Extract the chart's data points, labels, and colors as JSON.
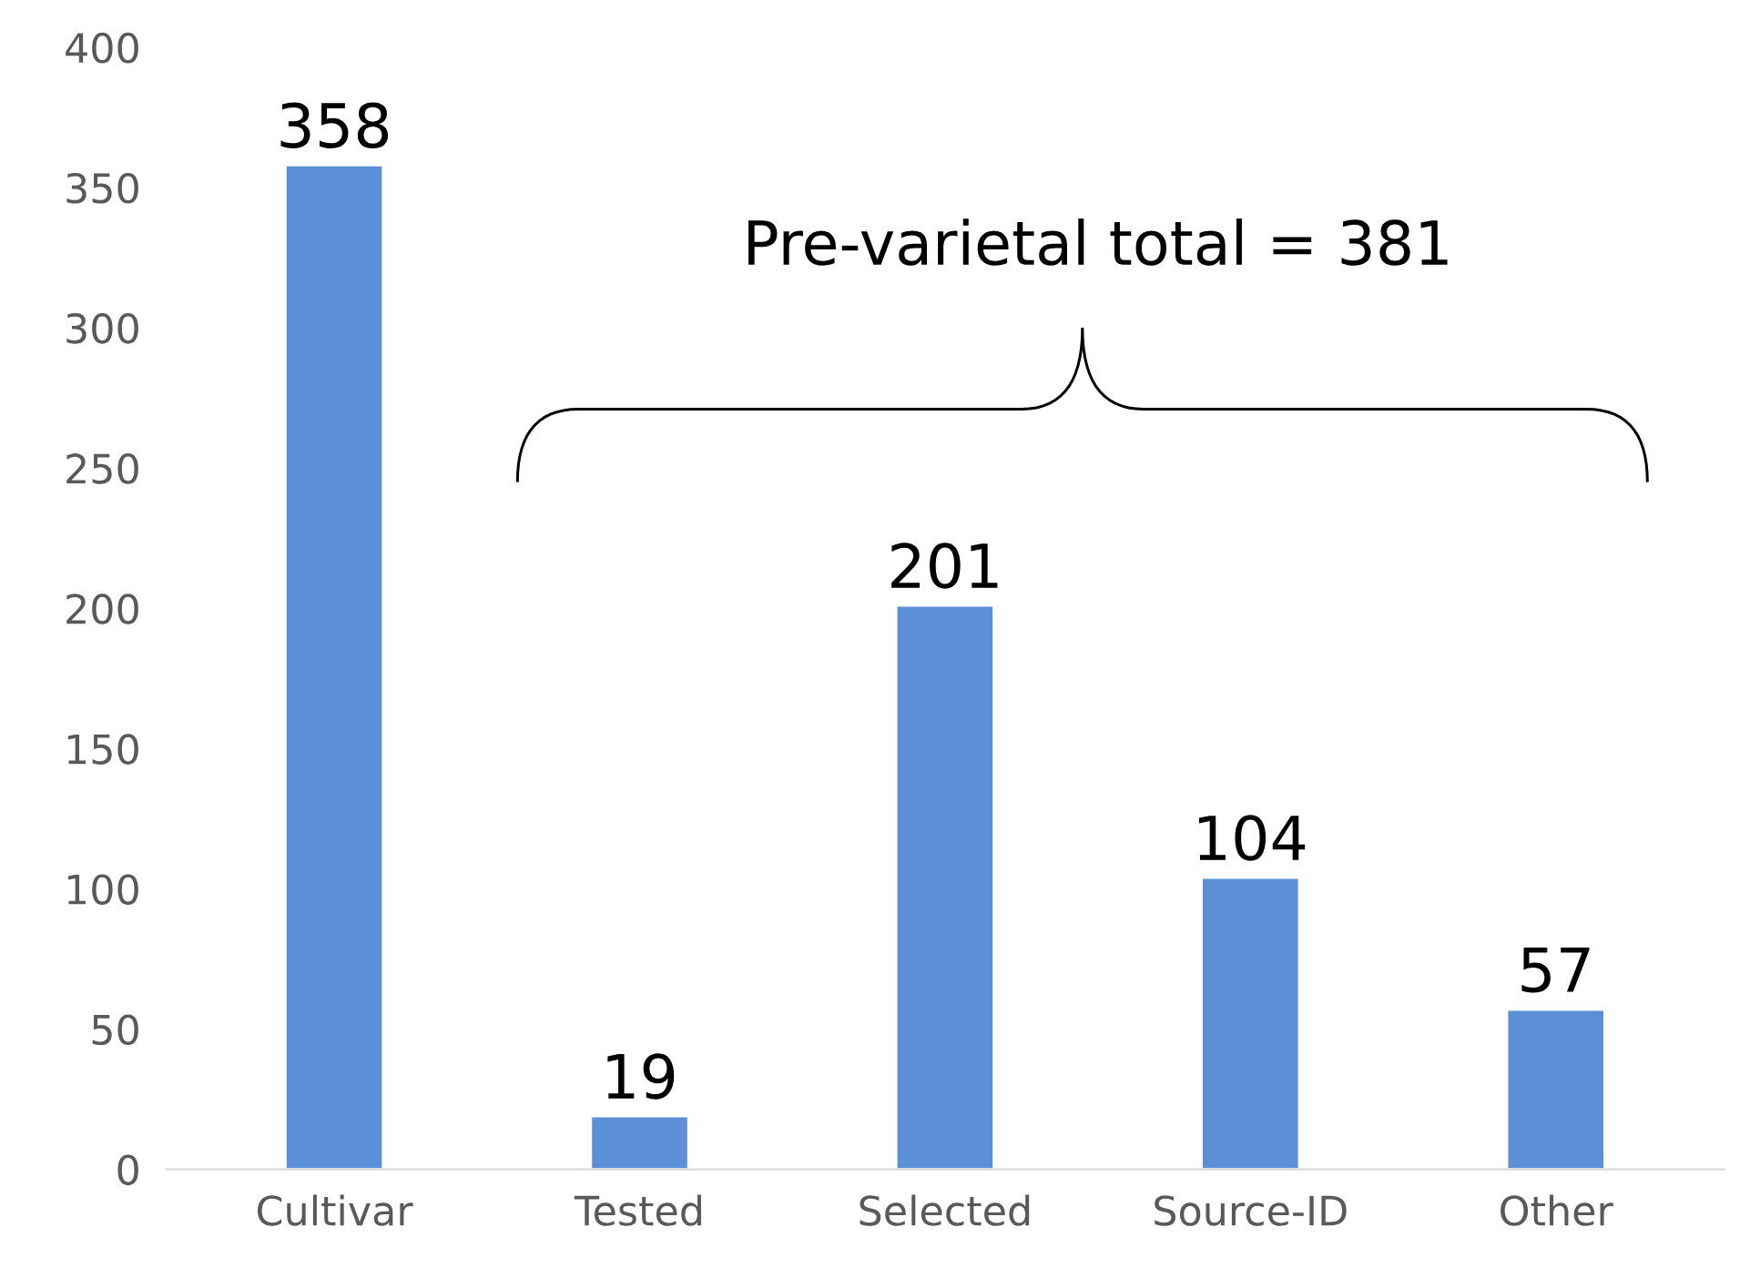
{
  "chart_data": {
    "type": "bar",
    "categories": [
      "Cultivar",
      "Tested",
      "Selected",
      "Source-ID",
      "Other"
    ],
    "values": [
      358,
      19,
      201,
      104,
      57
    ],
    "color": "#5b8fd6",
    "data_labels": true,
    "ylim": [
      0,
      400
    ],
    "yticks": [
      0,
      50,
      100,
      150,
      200,
      250,
      300,
      350,
      400
    ],
    "grid": false,
    "annotations": [
      "Pre-varietal total = 381"
    ]
  }
}
